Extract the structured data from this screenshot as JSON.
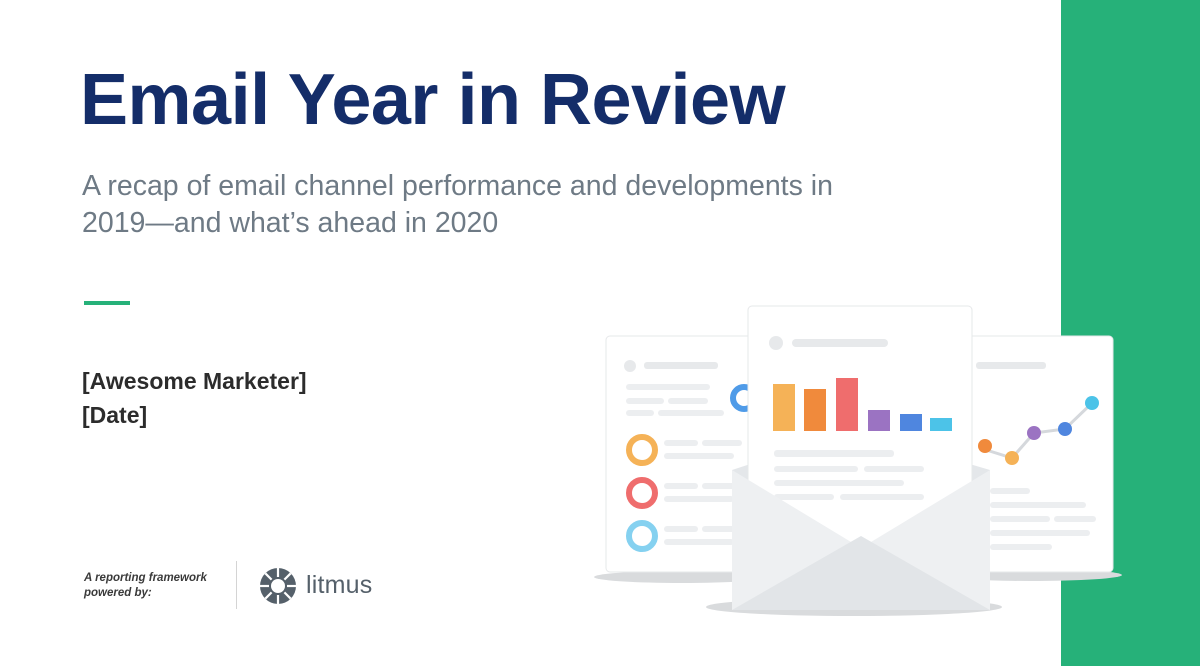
{
  "slide": {
    "title": "Email Year in Review",
    "subtitle": "A recap of email channel performance and developments in 2019—and what’s ahead in 2020",
    "presenter_name": "[Awesome Marketer]",
    "presenter_date": "[Date]",
    "powered_line1": "A reporting framework",
    "powered_line2": "powered by:",
    "logo_text": "litmus"
  },
  "colors": {
    "brand_green": "#26b179",
    "title_navy": "#142d69",
    "subtitle_gray": "#6e7a85"
  },
  "icons": {
    "logo": "litmus-logo-icon",
    "illustration": "email-report-illustration"
  }
}
